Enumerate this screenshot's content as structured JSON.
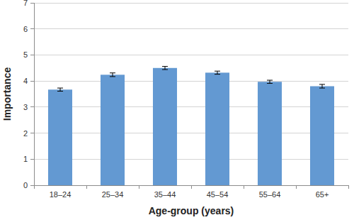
{
  "chart_data": {
    "type": "bar",
    "x_label": "Age-group (years)",
    "y_label": "Importance",
    "categories": [
      "18–24",
      "25–34",
      "35–44",
      "45–54",
      "55–64",
      "65+"
    ],
    "values": [
      3.67,
      4.24,
      4.5,
      4.32,
      3.97,
      3.8
    ],
    "errors": [
      0.06,
      0.07,
      0.06,
      0.06,
      0.06,
      0.07
    ],
    "color": "#6399d2",
    "ylim": [
      0,
      7
    ],
    "yticks": [
      0,
      1,
      2,
      3,
      4,
      5,
      6,
      7
    ],
    "grid": true
  }
}
